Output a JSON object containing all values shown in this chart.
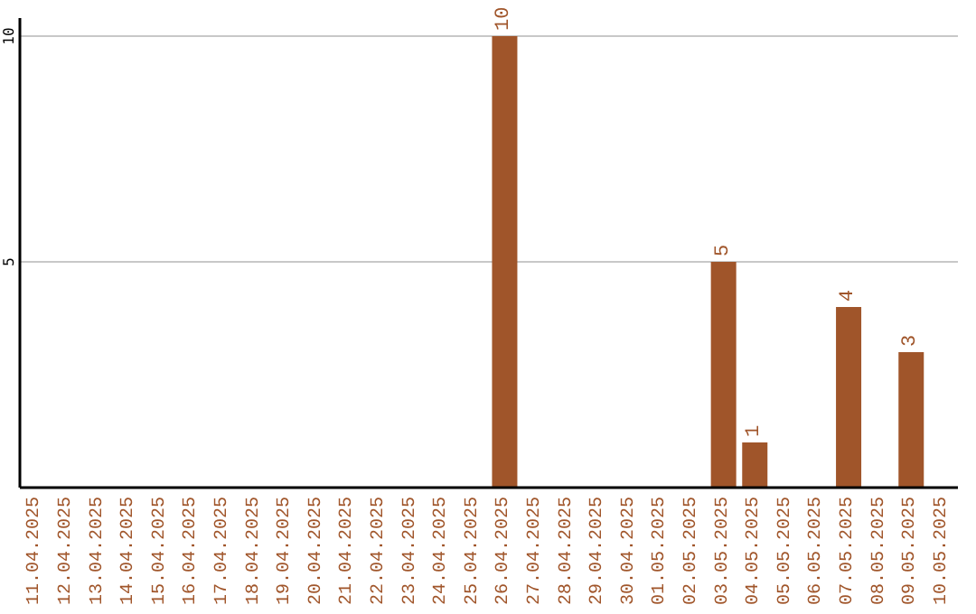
{
  "chart_data": {
    "type": "bar",
    "categories": [
      "11.04.2025",
      "12.04.2025",
      "13.04.2025",
      "14.04.2025",
      "15.04.2025",
      "16.04.2025",
      "17.04.2025",
      "18.04.2025",
      "19.04.2025",
      "20.04.2025",
      "21.04.2025",
      "22.04.2025",
      "23.04.2025",
      "24.04.2025",
      "25.04.2025",
      "26.04.2025",
      "27.04.2025",
      "28.04.2025",
      "29.04.2025",
      "30.04.2025",
      "01.05.2025",
      "02.05.2025",
      "03.05.2025",
      "04.05.2025",
      "05.05.2025",
      "06.05.2025",
      "07.05.2025",
      "08.05.2025",
      "09.05.2025",
      "10.05.2025"
    ],
    "values": [
      null,
      null,
      null,
      null,
      null,
      null,
      null,
      null,
      null,
      null,
      null,
      null,
      null,
      null,
      null,
      10,
      null,
      null,
      null,
      null,
      null,
      null,
      5,
      1,
      null,
      null,
      4,
      null,
      3,
      null
    ],
    "color": "#a0552a",
    "ylim": [
      0,
      10.4
    ],
    "yticks": [
      5,
      10
    ],
    "grid": "y",
    "data_labels": true
  }
}
